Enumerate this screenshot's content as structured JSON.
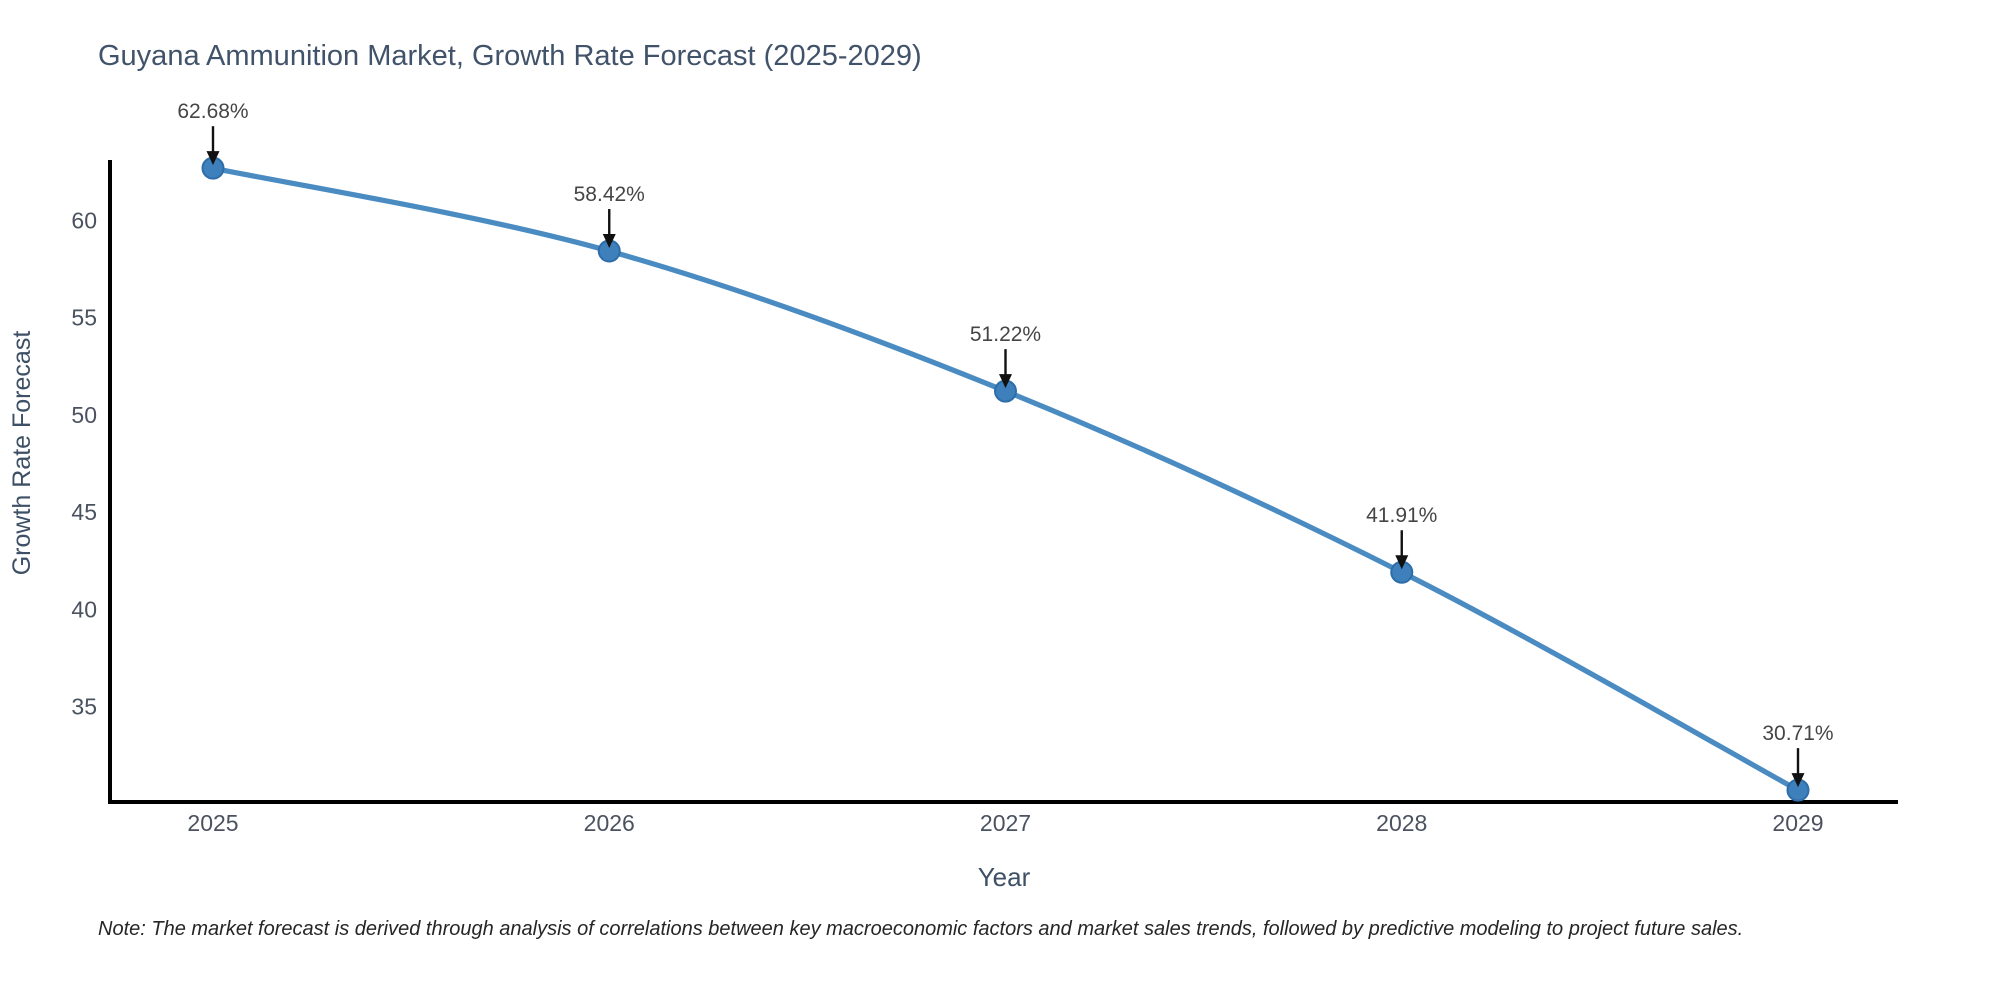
{
  "title": "Guyana Ammunition Market, Growth Rate Forecast (2025-2029)",
  "note": "Note: The market forecast is derived through analysis of correlations between key macroeconomic factors and market sales trends, followed by predictive modeling to project future sales.",
  "chart_data": {
    "type": "line",
    "title": "Guyana Ammunition Market, Growth Rate Forecast (2025-2029)",
    "xlabel": "Year",
    "ylabel": "Growth Rate Forecast",
    "categories": [
      "2025",
      "2026",
      "2027",
      "2028",
      "2029"
    ],
    "values": [
      62.68,
      58.42,
      51.22,
      41.91,
      30.71
    ],
    "point_labels": [
      "62.68%",
      "58.42%",
      "51.22%",
      "41.91%",
      "30.71%"
    ],
    "yticks": [
      35,
      40,
      45,
      50,
      55,
      60
    ],
    "ylim": [
      30.1,
      63.1
    ],
    "grid": false,
    "legend_position": "none",
    "line_shape": "spline",
    "colors": {
      "line": "#4a8bc2",
      "marker_fill": "#3d80bb",
      "marker_edge": "#2e6da8",
      "axis_line": "#000000",
      "annotation_arrow": "#111111",
      "title_text": "#41536a",
      "tick_text": "#4a5260",
      "axis_title_text": "#3e5065",
      "note_text": "#262626"
    },
    "note": "Note: The market forecast is derived through analysis of correlations between key macroeconomic factors and market sales trends, followed by predictive modeling to project future sales."
  }
}
